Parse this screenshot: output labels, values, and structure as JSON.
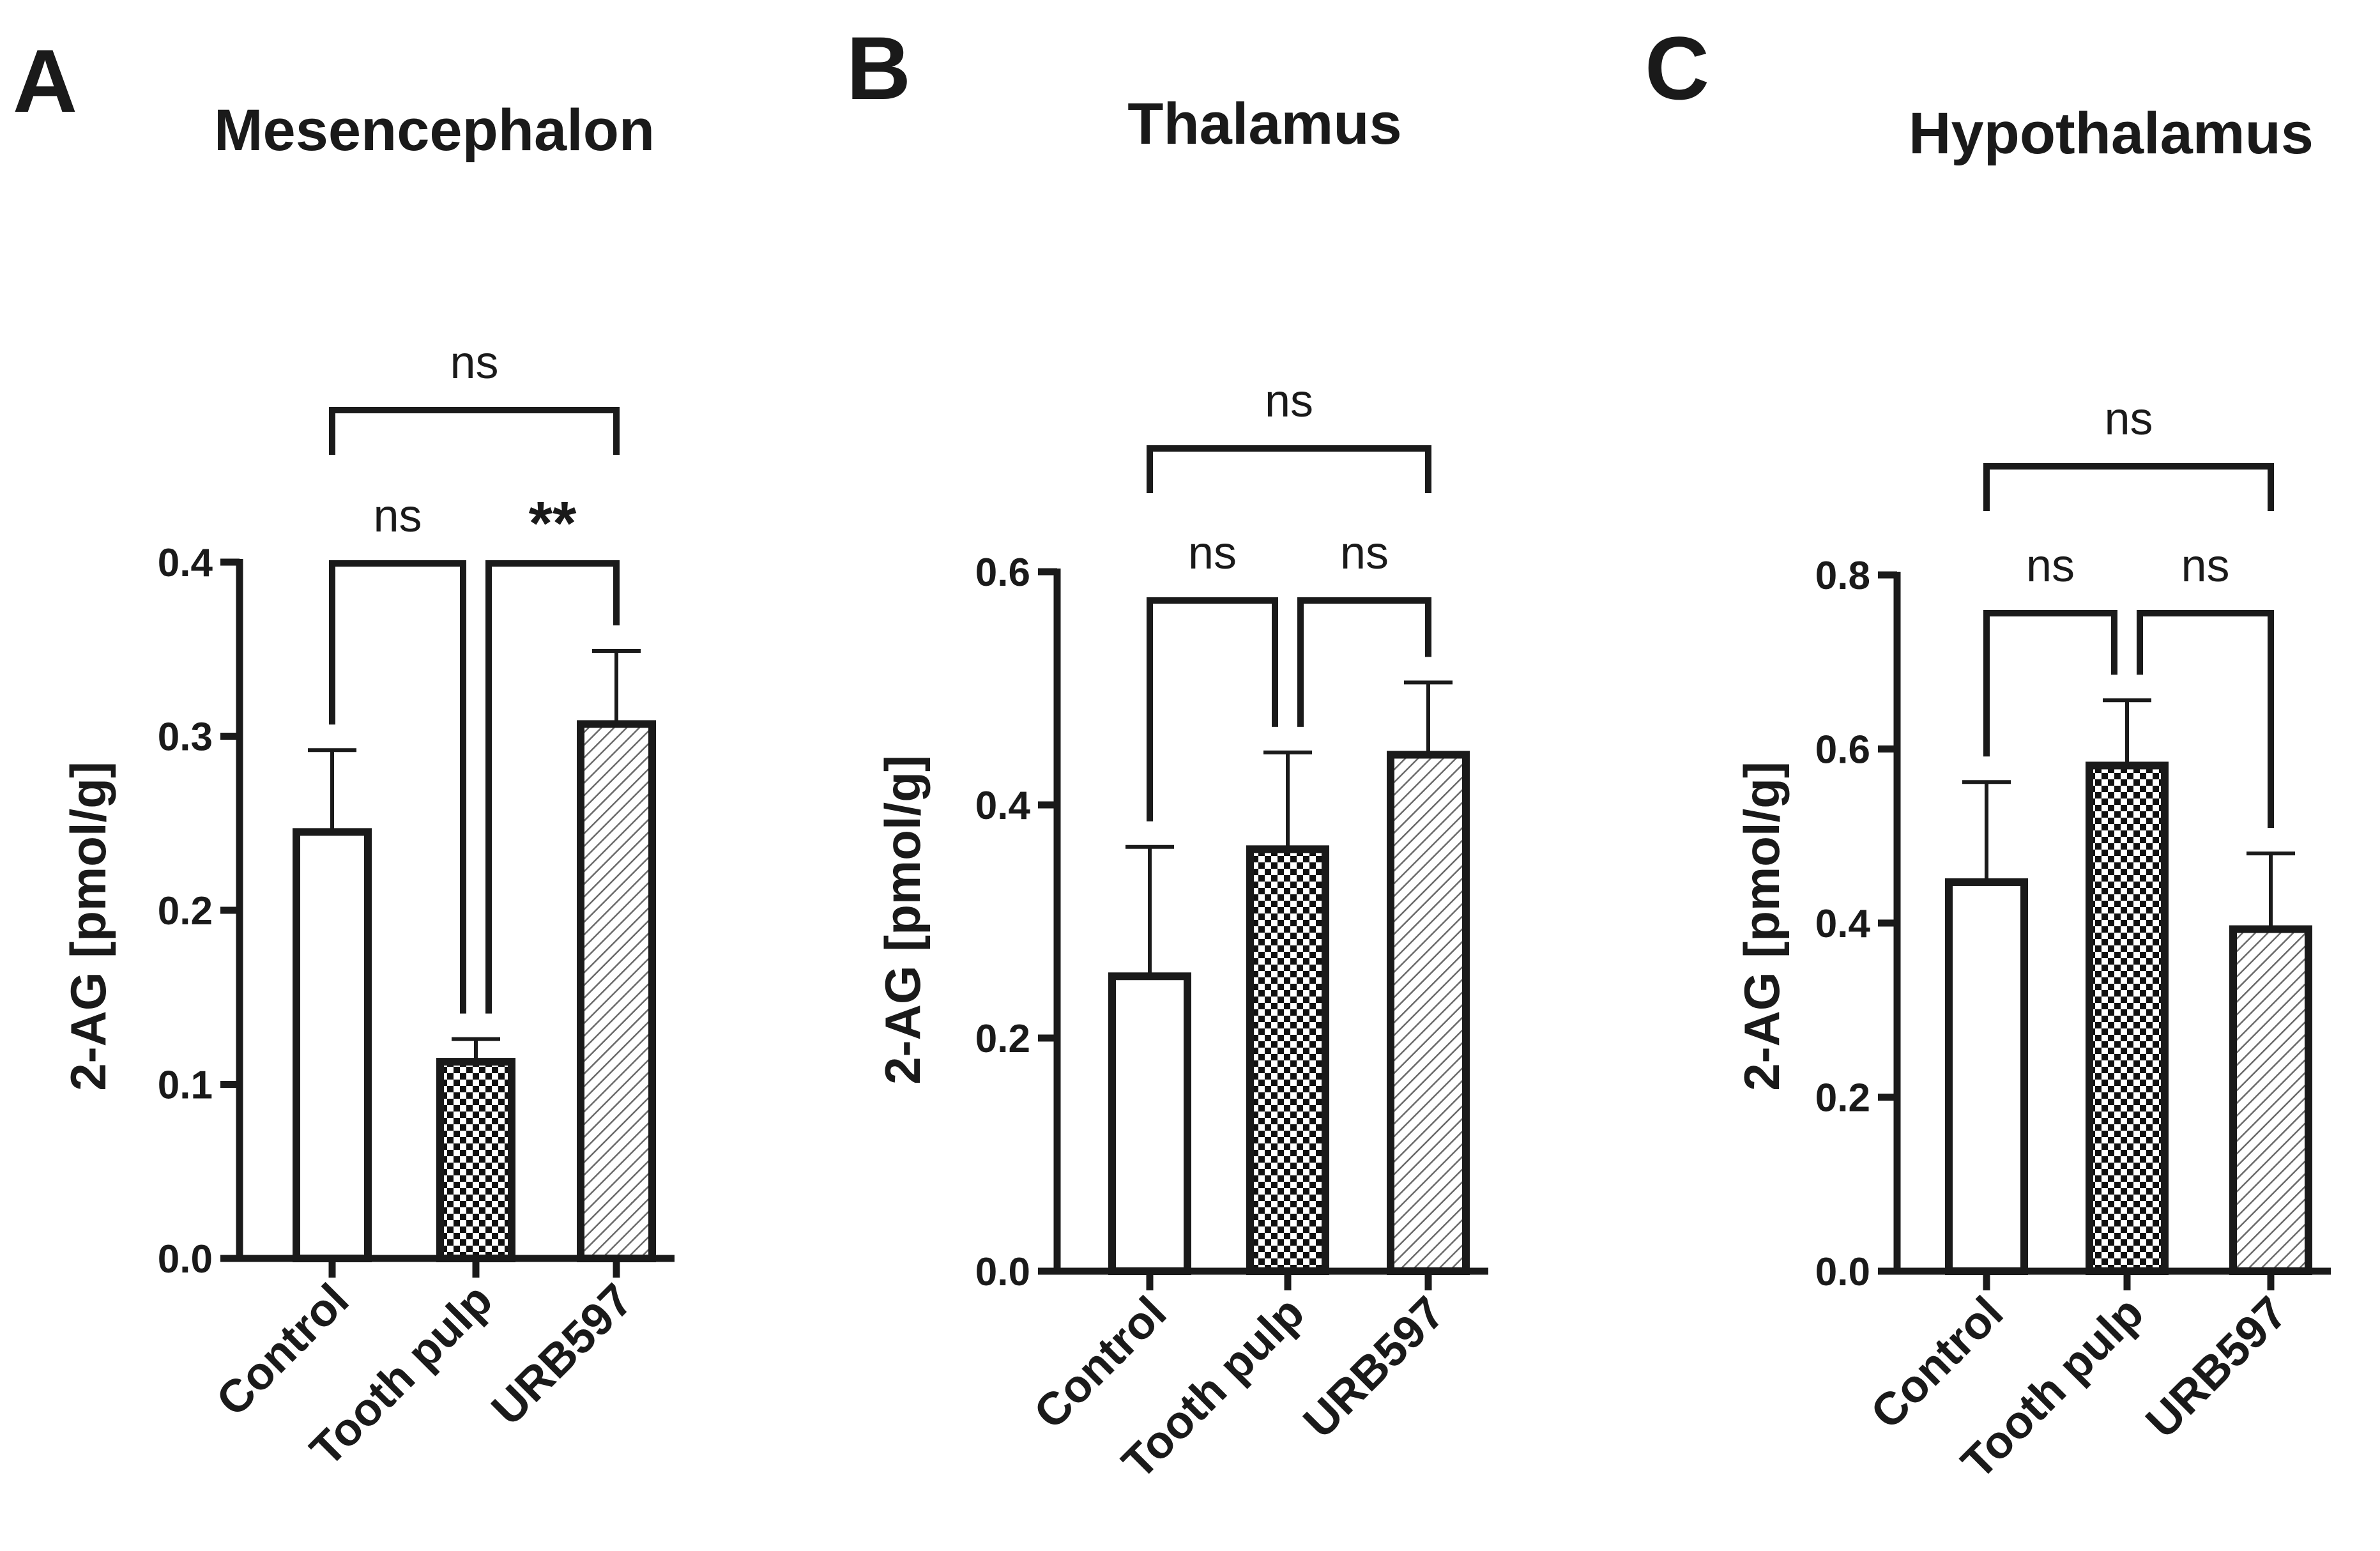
{
  "chart_data": [
    {
      "type": "bar",
      "panel": "A",
      "title": "Mesencephalon",
      "ylabel": "2-AG [pmol/g]",
      "xlabel": "",
      "ylim": [
        0,
        0.4
      ],
      "yticks": [
        "0.0",
        "0.1",
        "0.2",
        "0.3",
        "0.4"
      ],
      "categories": [
        "Control",
        "Tooth pulp",
        "URB597"
      ],
      "values": [
        0.245,
        0.113,
        0.307
      ],
      "errors": [
        0.047,
        0.013,
        0.042
      ],
      "patterns": [
        "white",
        "checker",
        "hatch"
      ],
      "comparisons": [
        {
          "from": 0,
          "to": 1,
          "label": "ns"
        },
        {
          "from": 1,
          "to": 2,
          "label": "**"
        },
        {
          "from": 0,
          "to": 2,
          "label": "ns"
        }
      ]
    },
    {
      "type": "bar",
      "panel": "B",
      "title": "Thalamus",
      "ylabel": "2-AG [pmol/g]",
      "xlabel": "",
      "ylim": [
        0,
        0.6
      ],
      "yticks": [
        "0.0",
        "0.2",
        "0.4",
        "0.6"
      ],
      "categories": [
        "Control",
        "Tooth pulp",
        "URB597"
      ],
      "values": [
        0.253,
        0.362,
        0.443
      ],
      "errors": [
        0.111,
        0.083,
        0.062
      ],
      "patterns": [
        "white",
        "checker",
        "hatch"
      ],
      "comparisons": [
        {
          "from": 0,
          "to": 1,
          "label": "ns"
        },
        {
          "from": 1,
          "to": 2,
          "label": "ns"
        },
        {
          "from": 0,
          "to": 2,
          "label": "ns"
        }
      ]
    },
    {
      "type": "bar",
      "panel": "C",
      "title": "Hypothalamus",
      "ylabel": "2-AG [pmol/g]",
      "xlabel": "",
      "ylim": [
        0,
        0.8
      ],
      "yticks": [
        "0.0",
        "0.2",
        "0.4",
        "0.6",
        "0.8"
      ],
      "categories": [
        "Control",
        "Tooth pulp",
        "URB597"
      ],
      "values": [
        0.447,
        0.581,
        0.393
      ],
      "errors": [
        0.115,
        0.075,
        0.087
      ],
      "patterns": [
        "white",
        "checker",
        "hatch"
      ],
      "comparisons": [
        {
          "from": 0,
          "to": 1,
          "label": "ns"
        },
        {
          "from": 1,
          "to": 2,
          "label": "ns"
        },
        {
          "from": 0,
          "to": 2,
          "label": "ns"
        }
      ]
    }
  ]
}
